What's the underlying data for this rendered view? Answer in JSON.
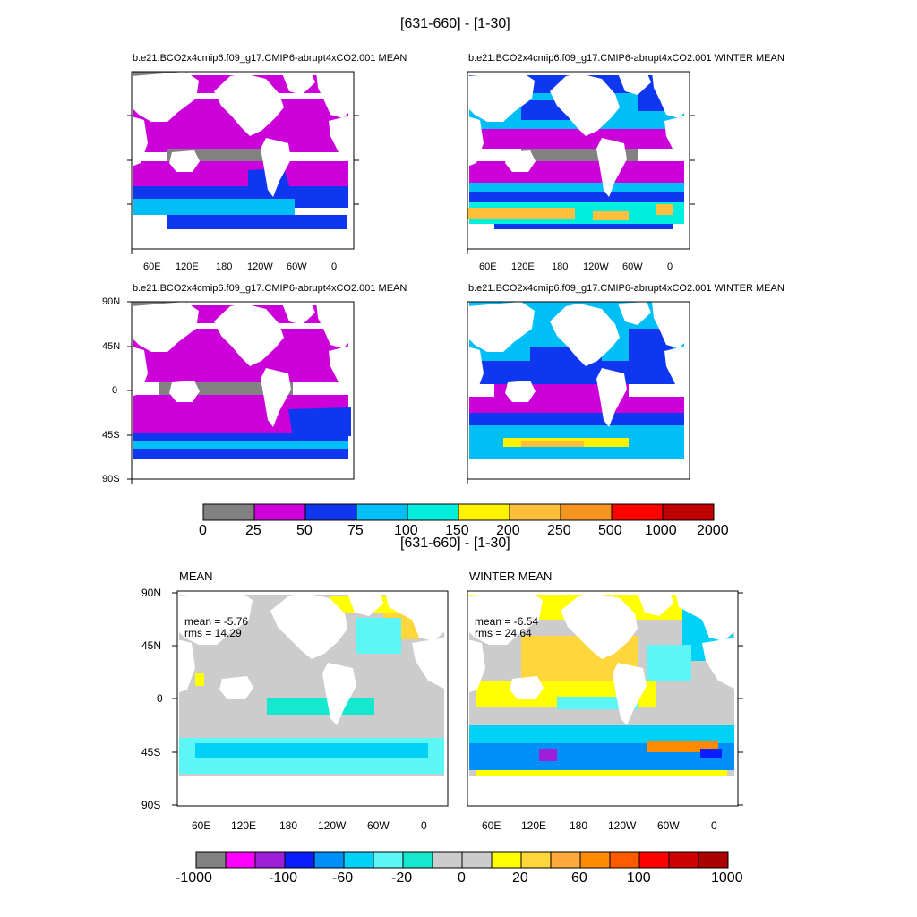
{
  "figure1": {
    "title": "[631-660] - [1-30]",
    "panels": [
      {
        "title": "b.e21.BCO2x4cmip6.f09_g17.CMIP6-abrupt4xCO2.001 MEAN"
      },
      {
        "title": "b.e21.BCO2x4cmip6.f09_g17.CMIP6-abrupt4xCO2.001 WINTER MEAN"
      },
      {
        "title": "b.e21.BCO2x4cmip6.f09_g17.CMIP6-abrupt4xCO2.001 MEAN"
      },
      {
        "title": "b.e21.BCO2x4cmip6.f09_g17.CMIP6-abrupt4xCO2.001 WINTER MEAN"
      }
    ],
    "lon_ticks": [
      "60E",
      "120E",
      "180",
      "120W",
      "60W",
      "0"
    ],
    "lat_ticks": [
      "90N",
      "45N",
      "0",
      "45S",
      "90S"
    ],
    "colorbar": {
      "labels": [
        "0",
        "25",
        "50",
        "75",
        "100",
        "150",
        "200",
        "250",
        "500",
        "1000",
        "2000"
      ],
      "colors": [
        "#828282",
        "#cc00d9",
        "#0f37f0",
        "#00bff7",
        "#00eede",
        "#fff200",
        "#ffbf3d",
        "#f49520",
        "#ff0000",
        "#c00000"
      ]
    }
  },
  "figure2": {
    "title": "[631-660] - [1-30]",
    "panels": [
      {
        "title": "MEAN",
        "mean": "mean = -5.76",
        "rms": "rms = 14.29"
      },
      {
        "title": "WINTER MEAN",
        "mean": "mean = -6.54",
        "rms": "rms = 24.64"
      }
    ],
    "lon_ticks": [
      "60E",
      "120E",
      "180",
      "120W",
      "60W",
      "0"
    ],
    "lat_ticks": [
      "90N",
      "45N",
      "0",
      "45S",
      "90S"
    ],
    "colorbar": {
      "labels": [
        "-1000",
        "-100",
        "-60",
        "-20",
        "0",
        "20",
        "60",
        "100",
        "1000"
      ],
      "colors": [
        "#828282",
        "#ff00ff",
        "#9d1fd9",
        "#0a1eff",
        "#008ff7",
        "#00d2f7",
        "#5cf6f7",
        "#14e8cf",
        "#cccccc",
        "#cccccc",
        "#ffff00",
        "#ffd63c",
        "#ffaa3a",
        "#ff8a00",
        "#ff5a00",
        "#ff0000",
        "#cc0000",
        "#aa0000"
      ]
    }
  },
  "chart_data": [
    {
      "type": "heatmap",
      "title": "b.e21.BCO2x4cmip6.f09_g17.CMIP6-abrupt4xCO2.001 MEAN",
      "x": "longitude",
      "y": "latitude",
      "xticks": [
        "60E",
        "120E",
        "180",
        "120W",
        "60W",
        "0"
      ],
      "levels": [
        0,
        25,
        50,
        75,
        100,
        150,
        200,
        250,
        500,
        1000,
        2000
      ]
    },
    {
      "type": "heatmap",
      "title": "b.e21.BCO2x4cmip6.f09_g17.CMIP6-abrupt4xCO2.001 WINTER MEAN",
      "x": "longitude",
      "y": "latitude",
      "xticks": [
        "60E",
        "120E",
        "180",
        "120W",
        "60W",
        "0"
      ],
      "levels": [
        0,
        25,
        50,
        75,
        100,
        150,
        200,
        250,
        500,
        1000,
        2000
      ]
    },
    {
      "type": "heatmap",
      "title": "b.e21.BCO2x4cmip6.f09_g17.CMIP6-abrupt4xCO2.001 MEAN",
      "yticks": [
        "90N",
        "45N",
        "0",
        "45S",
        "90S"
      ],
      "levels": [
        0,
        25,
        50,
        75,
        100,
        150,
        200,
        250,
        500,
        1000,
        2000
      ]
    },
    {
      "type": "heatmap",
      "title": "b.e21.BCO2x4cmip6.f09_g17.CMIP6-abrupt4xCO2.001 WINTER MEAN",
      "levels": [
        0,
        25,
        50,
        75,
        100,
        150,
        200,
        250,
        500,
        1000,
        2000
      ]
    },
    {
      "type": "heatmap",
      "title": "MEAN",
      "mean": -5.76,
      "rms": 14.29,
      "levels": [
        -1000,
        -100,
        -60,
        -20,
        0,
        20,
        60,
        100,
        1000
      ]
    },
    {
      "type": "heatmap",
      "title": "WINTER MEAN",
      "mean": -6.54,
      "rms": 24.64,
      "levels": [
        -1000,
        -100,
        -60,
        -20,
        0,
        20,
        60,
        100,
        1000
      ]
    }
  ]
}
